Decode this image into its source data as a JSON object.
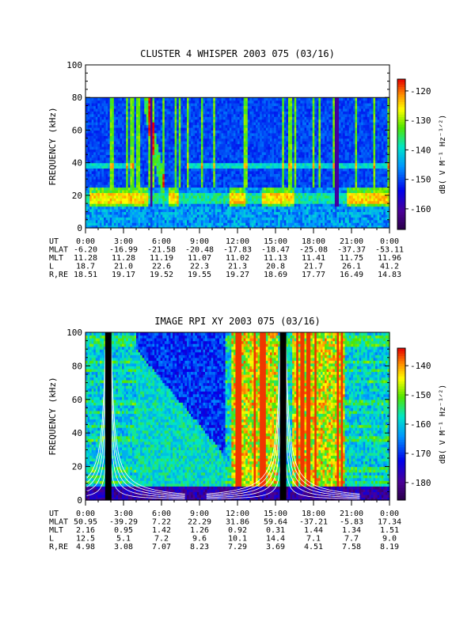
{
  "chart_data": [
    {
      "type": "heatmap",
      "title": "CLUSTER 4 WHISPER 2003 075 (03/16)",
      "xlabel": "",
      "ylabel": "FREQUENCY (kHz)",
      "xlim": [
        0,
        24
      ],
      "ylim": [
        0,
        100
      ],
      "data_fmax_khz": 80,
      "yticks": [
        "0",
        "20",
        "40",
        "60",
        "80",
        "100"
      ],
      "xticks": [
        "0:00",
        "3:00",
        "6:00",
        "9:00",
        "12:00",
        "15:00",
        "18:00",
        "21:00",
        "0:00"
      ],
      "colorbar": {
        "label": "dB( V M⁻¹ Hz⁻¹ᐟ²)",
        "range": [
          -167,
          -116
        ],
        "ticks": [
          "-120",
          "-130",
          "-140",
          "-150",
          "-160"
        ]
      },
      "features": {
        "background_level_db": -150,
        "band_20khz_level_db": -125,
        "band_20khz_red_segments_hours": [
          [
            0.3,
            5.0
          ],
          [
            6.5,
            7.3
          ],
          [
            11.3,
            12.6
          ],
          [
            14.0,
            16.5
          ],
          [
            20.6,
            24.0
          ]
        ],
        "descending_streak_hours": [
          4.7,
          6.2
        ],
        "line_38khz_level_db": -140
      },
      "ephemeris": {
        "row_labels": [
          "UT",
          "MLAT",
          "MLT",
          "L",
          "R,RE"
        ],
        "columns": [
          [
            "0:00",
            "-6.20",
            "11.28",
            "18.7",
            "18.51"
          ],
          [
            "3:00",
            "-16.99",
            "11.28",
            "21.0",
            "19.17"
          ],
          [
            "6:00",
            "-21.58",
            "11.19",
            "22.6",
            "19.52"
          ],
          [
            "9:00",
            "-20.48",
            "11.07",
            "22.3",
            "19.55"
          ],
          [
            "12:00",
            "-17.83",
            "11.02",
            "21.3",
            "19.27"
          ],
          [
            "15:00",
            "-18.47",
            "11.13",
            "20.8",
            "18.69"
          ],
          [
            "18:00",
            "-25.08",
            "11.41",
            "21.7",
            "17.77"
          ],
          [
            "21:00",
            "-37.37",
            "11.75",
            "26.1",
            "16.49"
          ],
          [
            "0:00",
            "-53.11",
            "11.96",
            "41.2",
            "14.83"
          ]
        ]
      }
    },
    {
      "type": "heatmap",
      "title": "IMAGE RPI XY 2003 075 (03/16)",
      "xlabel": "",
      "ylabel": "FREQUENCY (kHz)",
      "xlim": [
        0,
        24
      ],
      "ylim": [
        0,
        100
      ],
      "yticks": [
        "0",
        "20",
        "40",
        "60",
        "80",
        "100"
      ],
      "xticks": [
        "0:00",
        "3:00",
        "6:00",
        "9:00",
        "12:00",
        "15:00",
        "18:00",
        "21:00",
        "0:00"
      ],
      "colorbar": {
        "label": "dB( V M⁻¹ Hz⁻¹ᐟ²)",
        "range": [
          -186,
          -134
        ],
        "ticks": [
          "-140",
          "-150",
          "-160",
          "-170",
          "-180"
        ]
      },
      "features": {
        "perigee_hours": [
          1.8,
          15.6
        ],
        "strong_emission_hours": [
          [
            11.5,
            15.2
          ],
          [
            16.3,
            20.5
          ]
        ],
        "overlay_curves": "white plasma-frequency contours"
      },
      "ephemeris": {
        "row_labels": [
          "UT",
          "MLAT",
          "MLT",
          "L",
          "R,RE"
        ],
        "columns": [
          [
            "0:00",
            "50.95",
            "2.16",
            "12.5",
            "4.98"
          ],
          [
            "3:00",
            "-39.29",
            "0.95",
            "5.1",
            "3.08"
          ],
          [
            "6:00",
            "7.22",
            "1.42",
            "7.2",
            "7.07"
          ],
          [
            "9:00",
            "22.29",
            "1.26",
            "9.6",
            "8.23"
          ],
          [
            "12:00",
            "31.86",
            "0.92",
            "10.1",
            "7.29"
          ],
          [
            "15:00",
            "59.64",
            "0.31",
            "14.4",
            "3.69"
          ],
          [
            "18:00",
            "-37.21",
            "1.44",
            "7.1",
            "4.51"
          ],
          [
            "21:00",
            "-5.83",
            "1.34",
            "7.7",
            "7.58"
          ],
          [
            "0:00",
            "17.34",
            "1.51",
            "9.0",
            "8.19"
          ]
        ]
      }
    }
  ]
}
